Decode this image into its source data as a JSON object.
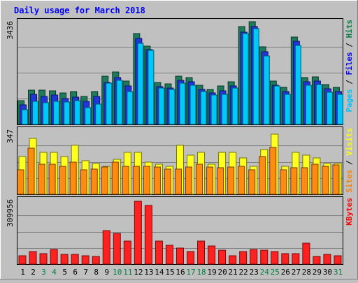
{
  "chart_data": {
    "type": "bar",
    "title": "Daily usage for March 2018",
    "categories": [
      "1",
      "2",
      "3",
      "4",
      "5",
      "6",
      "7",
      "8",
      "9",
      "10",
      "11",
      "12",
      "13",
      "14",
      "15",
      "16",
      "17",
      "18",
      "19",
      "20",
      "21",
      "22",
      "23",
      "24",
      "25",
      "26",
      "27",
      "28",
      "29",
      "30",
      "31"
    ],
    "weekend_days": [
      "3",
      "4",
      "10",
      "11",
      "17",
      "18",
      "24",
      "25",
      "31"
    ],
    "panels": [
      {
        "id": "hits",
        "max_label": "3436",
        "ymax": 3436,
        "legend": [
          {
            "text": "Pages",
            "color": "#00c0ff"
          },
          {
            "text": " / ",
            "color": "#000000"
          },
          {
            "text": "Files",
            "color": "#0000ff"
          },
          {
            "text": " / ",
            "color": "#000000"
          },
          {
            "text": "Hits",
            "color": "#008040"
          }
        ],
        "series": [
          {
            "name": "Hits",
            "color": "#1e7a5a",
            "values": [
              800,
              1130,
              1130,
              1120,
              1050,
              1100,
              930,
              1100,
              1600,
              1730,
              1450,
              3020,
              2600,
              1400,
              1350,
              1600,
              1550,
              1300,
              1150,
              1270,
              1420,
              3250,
              3420,
              2580,
              1430,
              1230,
              2900,
              1550,
              1580,
              1320,
              1230
            ]
          },
          {
            "name": "Files",
            "color": "#1f35d8",
            "values": [
              650,
              990,
              920,
              980,
              860,
              900,
              760,
              920,
              1400,
              1560,
              1270,
              2860,
              2490,
              1260,
              1210,
              1470,
              1420,
              1160,
              1040,
              1110,
              1280,
              3070,
              3250,
              2410,
              1290,
              1100,
              2760,
              1410,
              1450,
              1190,
              1100
            ]
          },
          {
            "name": "Pages",
            "color": "#00c8f8",
            "values": [
              480,
              770,
              710,
              760,
              740,
              790,
              560,
              680,
              1370,
              1460,
              1100,
              2700,
              2460,
              1200,
              1150,
              1360,
              1290,
              1100,
              980,
              1000,
              1200,
              3010,
              3170,
              2280,
              1270,
              1000,
              2620,
              1290,
              1330,
              1060,
              1000
            ]
          }
        ]
      },
      {
        "id": "sites",
        "max_label": "347",
        "ymax": 347,
        "legend": [
          {
            "text": "Sites",
            "color": "#ff8000"
          },
          {
            "text": " / ",
            "color": "#000000"
          },
          {
            "text": "Visits",
            "color": "#ffff00"
          }
        ],
        "series": [
          {
            "name": "Visits",
            "color": "#ffff20",
            "values": [
              200,
              300,
              225,
              225,
              200,
              262,
              180,
              165,
              150,
              185,
              225,
              225,
              170,
              160,
              150,
              262,
              210,
              225,
              160,
              225,
              225,
              195,
              150,
              240,
              320,
              150,
              225,
              210,
              195,
              165,
              165
            ]
          },
          {
            "name": "Sites",
            "color": "#ff8c10",
            "values": [
              130,
              245,
              160,
              160,
              150,
              170,
              130,
              135,
              145,
              170,
              150,
              150,
              150,
              145,
              135,
              135,
              145,
              160,
              145,
              140,
              145,
              150,
              130,
              200,
              250,
              130,
              140,
              140,
              160,
              150,
              155
            ]
          }
        ]
      },
      {
        "id": "kbytes",
        "max_label": "309956",
        "ymax": 309956,
        "legend": [
          {
            "text": "KBytes",
            "color": "#ff0000"
          }
        ],
        "series": [
          {
            "name": "KBytes",
            "color": "#ff2020",
            "values": [
              40000,
              60000,
              50000,
              70000,
              45000,
              45000,
              40000,
              35000,
              160000,
              145000,
              110000,
              300000,
              280000,
              110000,
              90000,
              75000,
              60000,
              110000,
              85000,
              65000,
              40000,
              60000,
              70000,
              65000,
              60000,
              50000,
              50000,
              100000,
              35000,
              45000,
              40000
            ]
          }
        ]
      }
    ]
  }
}
